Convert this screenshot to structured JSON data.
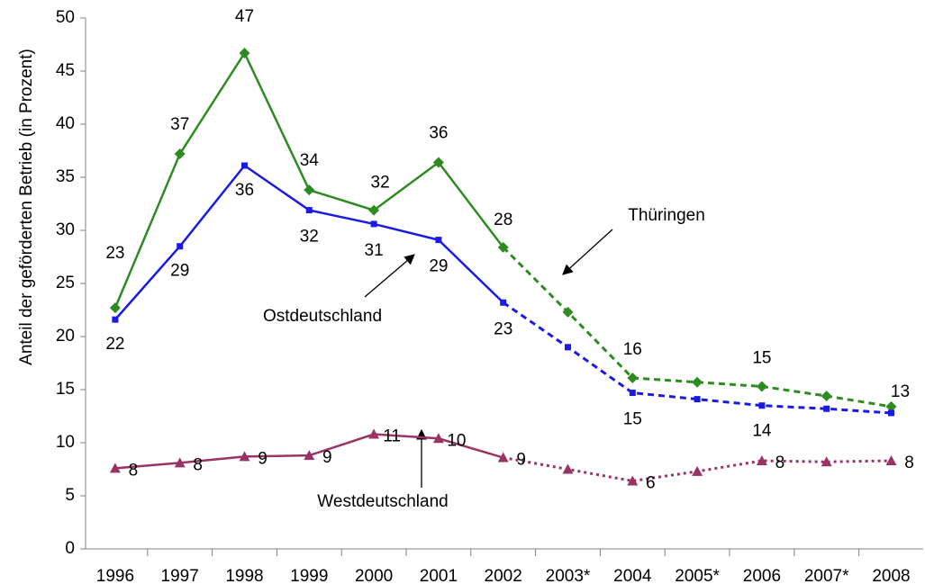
{
  "chart_data": {
    "type": "line",
    "y_axis_label": "Anteil der geförderten Betrieb (in Prozent)",
    "categories": [
      "1996",
      "1997",
      "1998",
      "1999",
      "2000",
      "2001",
      "2002",
      "2003*",
      "2004",
      "2005*",
      "2006",
      "2007*",
      "2008"
    ],
    "ylim": [
      0,
      50
    ],
    "yticks": [
      0,
      5,
      10,
      15,
      20,
      25,
      30,
      35,
      40,
      45,
      50
    ],
    "dash_start": 6,
    "series": [
      {
        "name": "Thüringen",
        "color": "#2e8b22",
        "marker": "diamond",
        "dash": "dashed",
        "values": [
          22.7,
          37.2,
          46.7,
          33.8,
          31.9,
          36.4,
          28.4,
          22.3,
          16.1,
          15.7,
          15.3,
          14.4,
          13.4
        ],
        "value_labels": [
          "23",
          "37",
          "47",
          "34",
          "32",
          "36",
          "28",
          null,
          "16",
          null,
          "15",
          null,
          "13"
        ]
      },
      {
        "name": "Ostdeutschland",
        "color": "#1a1ae6",
        "marker": "square",
        "dash": "dashed",
        "values": [
          21.6,
          28.5,
          36.1,
          31.9,
          30.6,
          29.1,
          23.2,
          19.0,
          14.7,
          14.1,
          13.5,
          13.2,
          12.8
        ],
        "value_labels": [
          "22",
          "29",
          "36",
          "32",
          "31",
          "29",
          "23",
          null,
          "15",
          null,
          "14",
          null,
          null
        ]
      },
      {
        "name": "Westdeutschland",
        "color": "#993366",
        "marker": "triangle",
        "dash": "dotted",
        "values": [
          7.6,
          8.1,
          8.7,
          8.8,
          10.8,
          10.4,
          8.6,
          7.5,
          6.4,
          7.3,
          8.3,
          8.2,
          8.3
        ],
        "value_labels": [
          "8",
          "8",
          "9",
          "9",
          "11",
          "10",
          "9",
          null,
          "6",
          null,
          "8",
          null,
          "8"
        ]
      }
    ]
  }
}
